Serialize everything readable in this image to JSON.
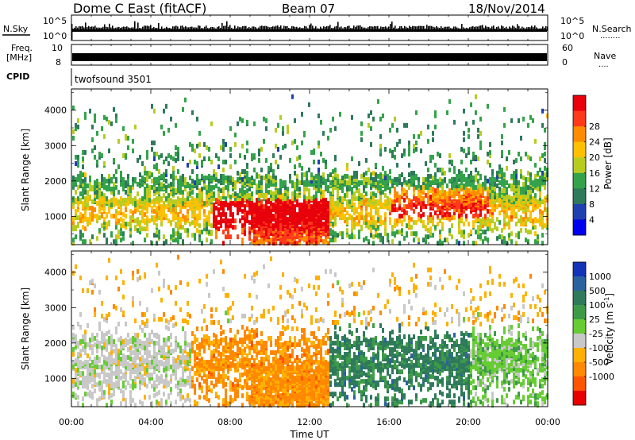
{
  "header": {
    "station": "Dome C East (fitACF)",
    "beam": "Beam 07",
    "date": "18/Nov/2014"
  },
  "panels": {
    "nsky": {
      "label": "N.Sky",
      "tick_top": "10^5",
      "tick_bottom": "10^0"
    },
    "nsearch": {
      "label": "N.Search",
      "dots": "........",
      "tick_top": "10^5",
      "tick_bottom": "10^0"
    },
    "freq": {
      "label_line1": "Freq.",
      "label_line2": "[MHz]",
      "tick_top": "10",
      "tick_bottom": "8"
    },
    "nave": {
      "label": "Nave",
      "dots": "....",
      "tick_top": "60",
      "tick_bottom": "0"
    },
    "cpid": {
      "label": "CPID",
      "program": "twofsound 3501"
    }
  },
  "chart_data": [
    {
      "type": "heatmap",
      "name": "power",
      "ylabel": "Slant Range [km]",
      "ylim": [
        200,
        4600
      ],
      "yticks": [
        1000,
        2000,
        3000,
        4000
      ],
      "xlim": [
        0,
        24
      ],
      "colorbar": {
        "label": "Power [dB]",
        "ticks": [
          "4",
          "8",
          "12",
          "16",
          "20",
          "24",
          "28"
        ],
        "colors": [
          "#0000ee",
          "#2040b0",
          "#2e7a5a",
          "#33a24a",
          "#b8cc20",
          "#ffc000",
          "#ff8c00",
          "#ff3a1a",
          "#e8000a"
        ]
      }
    },
    {
      "type": "heatmap",
      "name": "velocity",
      "ylabel": "Slant Range [km]",
      "ylim": [
        200,
        4600
      ],
      "yticks": [
        1000,
        2000,
        3000,
        4000
      ],
      "xlim": [
        0,
        24
      ],
      "xlabel": "Time UT",
      "xticks": [
        "00:00",
        "04:00",
        "08:00",
        "12:00",
        "16:00",
        "20:00",
        "00:00"
      ],
      "colorbar": {
        "label": "Velocity [m s",
        "label_sup": "-1",
        "label_end": "]",
        "ticks": [
          "1000",
          "500",
          "100",
          "25",
          "-25",
          "-100",
          "-500",
          "-1000"
        ],
        "colors": [
          "#1433b8",
          "#2a62a0",
          "#2e7a5a",
          "#3d9a48",
          "#66cc33",
          "#c8c8c8",
          "#ffb000",
          "#ff8800",
          "#ff5500",
          "#e80000"
        ]
      }
    }
  ]
}
